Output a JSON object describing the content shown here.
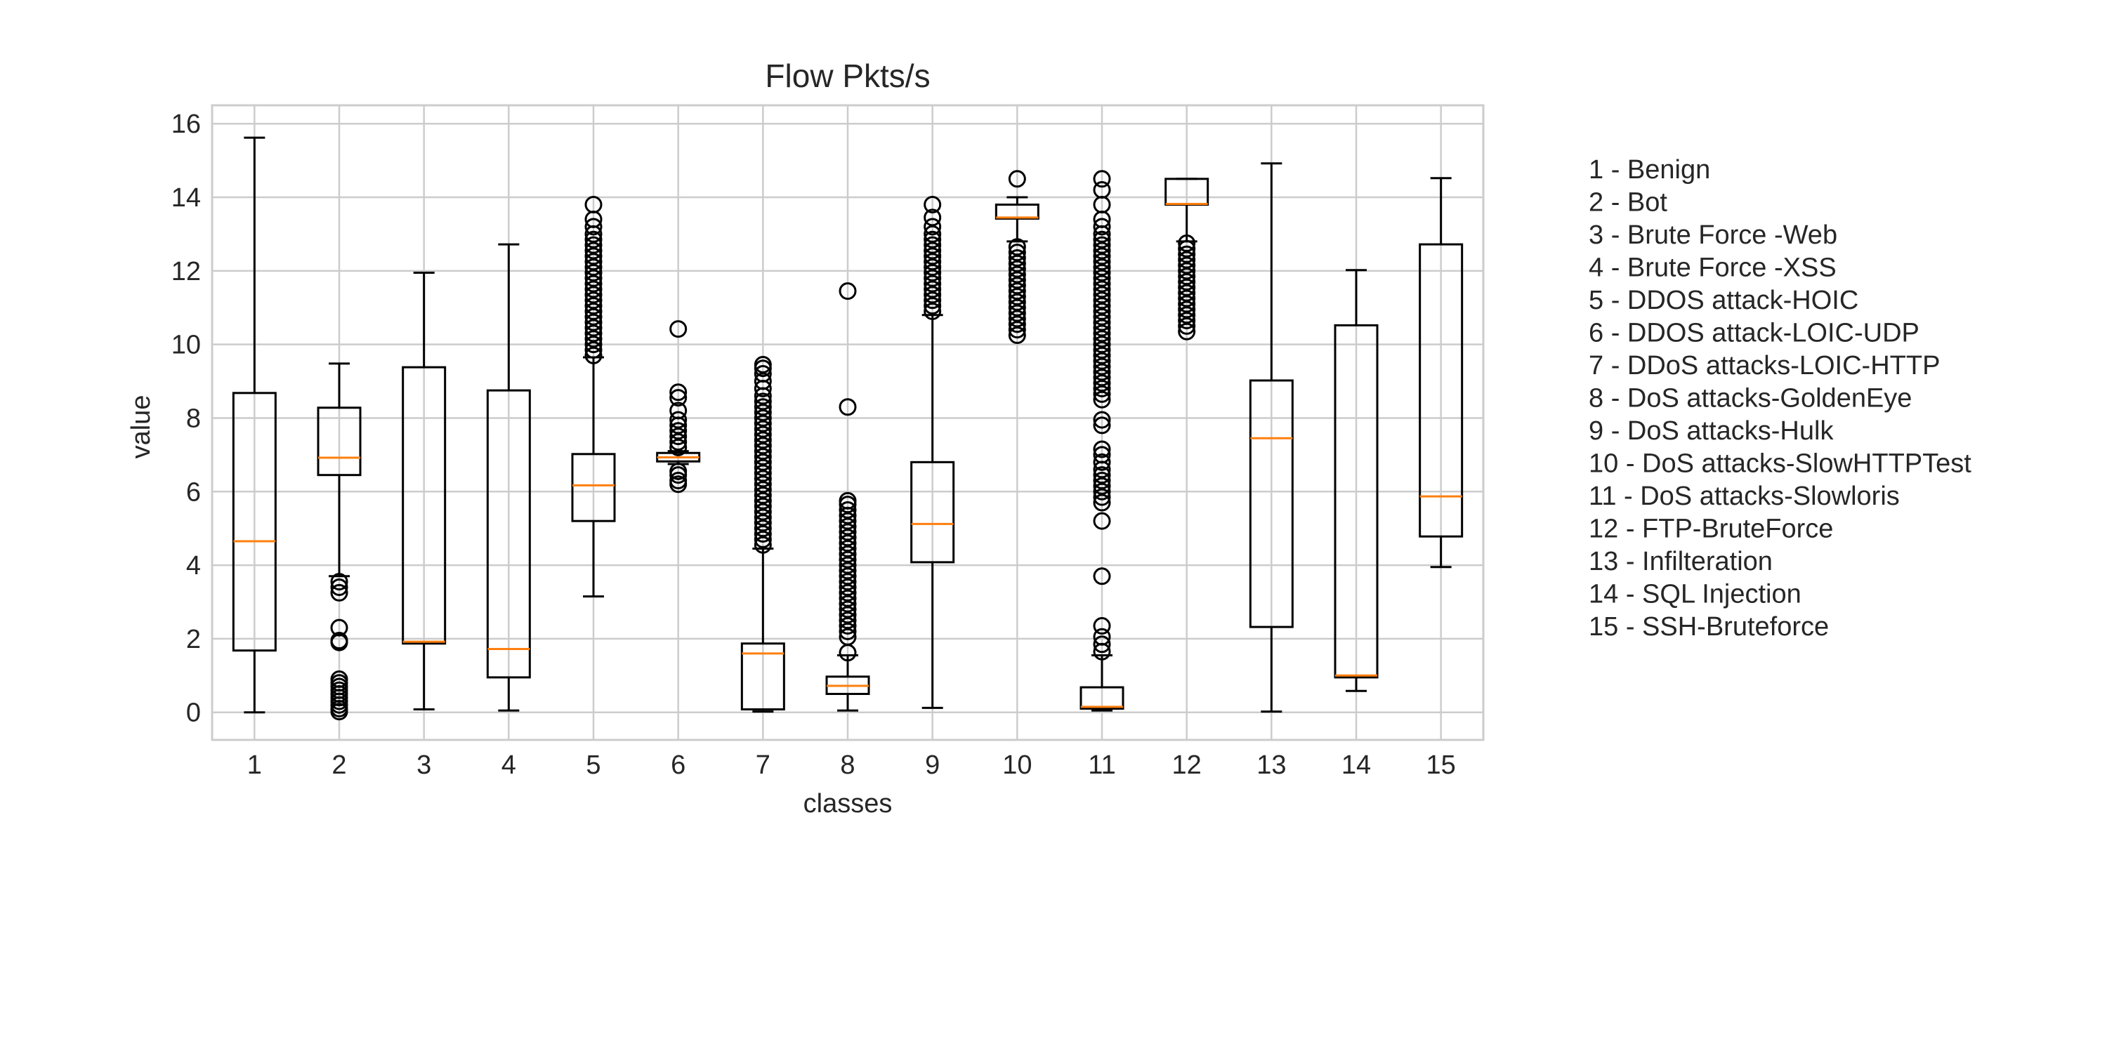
{
  "chart_data": {
    "type": "boxplot",
    "title": "Flow Pkts/s",
    "xlabel": "classes",
    "ylabel": "value",
    "ylim": [
      -0.75,
      16.5
    ],
    "yticks": [
      0,
      2,
      4,
      6,
      8,
      10,
      12,
      14,
      16
    ],
    "categories": [
      "1",
      "2",
      "3",
      "4",
      "5",
      "6",
      "7",
      "8",
      "9",
      "10",
      "11",
      "12",
      "13",
      "14",
      "15"
    ],
    "grid": true,
    "legend_placement": "right",
    "legend": [
      "1 - Benign",
      "2 - Bot",
      "3 - Brute Force -Web",
      "4 - Brute Force -XSS",
      "5 - DDOS attack-HOIC",
      "6 - DDOS attack-LOIC-UDP",
      "7 - DDoS attacks-LOIC-HTTP",
      "8 - DoS attacks-GoldenEye",
      "9 - DoS attacks-Hulk",
      "10 - DoS attacks-SlowHTTPTest",
      "11 - DoS attacks-Slowloris",
      "12 - FTP-BruteForce",
      "13 - Infilteration",
      "14 - SQL Injection",
      "15 - SSH-Bruteforce"
    ],
    "boxes": [
      {
        "whislo": 0.0,
        "q1": 1.68,
        "med": 4.65,
        "q3": 8.68,
        "whishi": 15.62,
        "fliers": []
      },
      {
        "whislo": 3.7,
        "q1": 6.45,
        "med": 6.92,
        "q3": 8.28,
        "whishi": 9.48,
        "fliers": [
          3.55,
          3.4,
          3.25,
          2.3,
          1.95,
          1.9,
          0.9,
          0.8,
          0.7,
          0.6,
          0.5,
          0.4,
          0.3,
          0.2,
          0.1,
          0.02
        ]
      },
      {
        "whislo": 0.08,
        "q1": 1.87,
        "med": 1.92,
        "q3": 9.38,
        "whishi": 11.95,
        "fliers": []
      },
      {
        "whislo": 0.05,
        "q1": 0.95,
        "med": 1.72,
        "q3": 8.75,
        "whishi": 12.72,
        "fliers": []
      },
      {
        "whislo": 3.15,
        "q1": 5.2,
        "med": 6.17,
        "q3": 7.02,
        "whishi": 9.65,
        "fliers": [
          9.7,
          9.85,
          10.0,
          10.15,
          10.3,
          10.45,
          10.6,
          10.75,
          10.9,
          11.05,
          11.2,
          11.35,
          11.5,
          11.65,
          11.8,
          11.95,
          12.1,
          12.25,
          12.4,
          12.55,
          12.7,
          12.85,
          13.0,
          13.2,
          13.4,
          13.8
        ]
      },
      {
        "whislo": 6.75,
        "q1": 6.82,
        "med": 6.93,
        "q3": 7.05,
        "whishi": 7.1,
        "fliers": [
          6.2,
          6.3,
          6.45,
          6.55,
          7.2,
          7.35,
          7.5,
          7.65,
          7.8,
          7.95,
          8.2,
          8.55,
          8.7,
          10.42
        ]
      },
      {
        "whislo": 0.02,
        "q1": 0.08,
        "med": 1.6,
        "q3": 1.87,
        "whishi": 4.45,
        "fliers": [
          4.55,
          4.7,
          4.85,
          5.0,
          5.15,
          5.3,
          5.45,
          5.6,
          5.75,
          5.9,
          6.05,
          6.2,
          6.35,
          6.5,
          6.65,
          6.8,
          6.95,
          7.1,
          7.25,
          7.4,
          7.55,
          7.7,
          7.85,
          8.0,
          8.15,
          8.3,
          8.45,
          8.6,
          8.8,
          9.0,
          9.2,
          9.35,
          9.45
        ]
      },
      {
        "whislo": 0.05,
        "q1": 0.5,
        "med": 0.72,
        "q3": 0.97,
        "whishi": 1.55,
        "fliers": [
          1.62,
          2.05,
          2.2,
          2.35,
          2.5,
          2.65,
          2.8,
          2.95,
          3.1,
          3.25,
          3.4,
          3.55,
          3.7,
          3.85,
          4.0,
          4.15,
          4.3,
          4.45,
          4.6,
          4.75,
          4.9,
          5.05,
          5.2,
          5.35,
          5.5,
          5.65,
          5.75,
          8.3,
          11.45
        ]
      },
      {
        "whislo": 0.12,
        "q1": 4.08,
        "med": 5.12,
        "q3": 6.8,
        "whishi": 10.8,
        "fliers": [
          10.9,
          11.05,
          11.2,
          11.35,
          11.5,
          11.65,
          11.8,
          11.95,
          12.1,
          12.25,
          12.4,
          12.55,
          12.7,
          12.85,
          13.0,
          13.2,
          13.45,
          13.8
        ]
      },
      {
        "whislo": 12.8,
        "q1": 13.42,
        "med": 13.45,
        "q3": 13.8,
        "whishi": 14.0,
        "fliers": [
          10.25,
          10.4,
          10.55,
          10.7,
          10.85,
          11.0,
          11.15,
          11.3,
          11.45,
          11.6,
          11.75,
          11.9,
          12.05,
          12.2,
          12.35,
          12.5,
          12.65,
          14.5
        ]
      },
      {
        "whislo": 0.05,
        "q1": 0.1,
        "med": 0.15,
        "q3": 0.68,
        "whishi": 1.55,
        "fliers": [
          1.65,
          1.85,
          2.05,
          2.35,
          3.7,
          5.2,
          5.7,
          5.85,
          6.0,
          6.15,
          6.3,
          6.45,
          6.6,
          6.8,
          7.0,
          7.15,
          7.8,
          7.95,
          8.5,
          8.65,
          8.8,
          8.95,
          9.1,
          9.25,
          9.4,
          9.55,
          9.7,
          9.85,
          10.0,
          10.15,
          10.3,
          10.45,
          10.6,
          10.75,
          10.9,
          11.05,
          11.2,
          11.35,
          11.5,
          11.65,
          11.8,
          11.95,
          12.1,
          12.25,
          12.4,
          12.55,
          12.7,
          12.85,
          13.0,
          13.2,
          13.4,
          13.8,
          14.2,
          14.5
        ]
      },
      {
        "whislo": 12.8,
        "q1": 13.8,
        "med": 13.82,
        "q3": 14.5,
        "whishi": 14.5,
        "fliers": [
          10.35,
          10.5,
          10.65,
          10.8,
          10.95,
          11.1,
          11.25,
          11.4,
          11.55,
          11.7,
          11.85,
          12.0,
          12.15,
          12.3,
          12.45,
          12.6,
          12.75
        ]
      },
      {
        "whislo": 0.02,
        "q1": 2.32,
        "med": 7.45,
        "q3": 9.02,
        "whishi": 14.92,
        "fliers": []
      },
      {
        "whislo": 0.58,
        "q1": 0.95,
        "med": 1.0,
        "q3": 10.52,
        "whishi": 12.02,
        "fliers": []
      },
      {
        "whislo": 3.95,
        "q1": 4.78,
        "med": 5.87,
        "q3": 12.72,
        "whishi": 14.52,
        "fliers": []
      }
    ],
    "colors": {
      "box": "#000000",
      "median": "#ff7f0e",
      "grid": "#cccccc",
      "frame": "#cccccc",
      "text": "#262626"
    }
  }
}
